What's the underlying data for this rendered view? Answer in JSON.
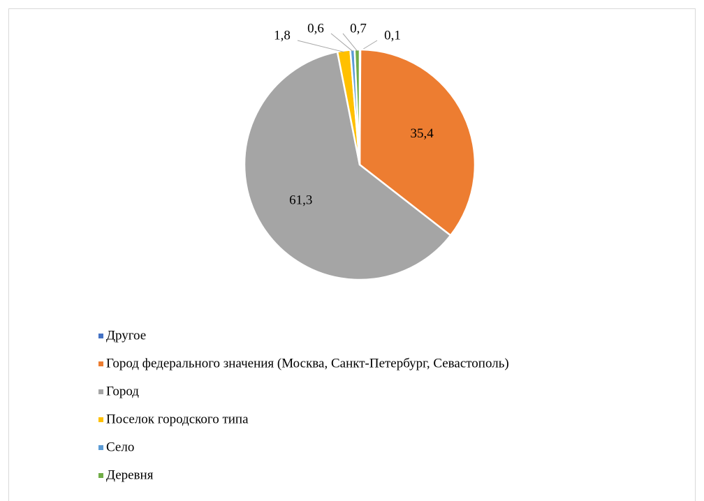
{
  "chart_data": {
    "type": "pie",
    "categories": [
      "Другое",
      "Город федерального значения (Москва, Санкт-Петербург, Севастополь)",
      "Город",
      "Поселок городского типа",
      "Село",
      "Деревня"
    ],
    "values": [
      0.1,
      35.4,
      61.3,
      1.8,
      0.6,
      0.7
    ],
    "value_labels": [
      "0,1",
      "35,4",
      "61,3",
      "1,8",
      "0,6",
      "0,7"
    ],
    "colors": [
      "#4472c4",
      "#ed7d31",
      "#a5a5a5",
      "#ffc000",
      "#5b9bd5",
      "#70ad47"
    ],
    "legend": "bottom"
  }
}
